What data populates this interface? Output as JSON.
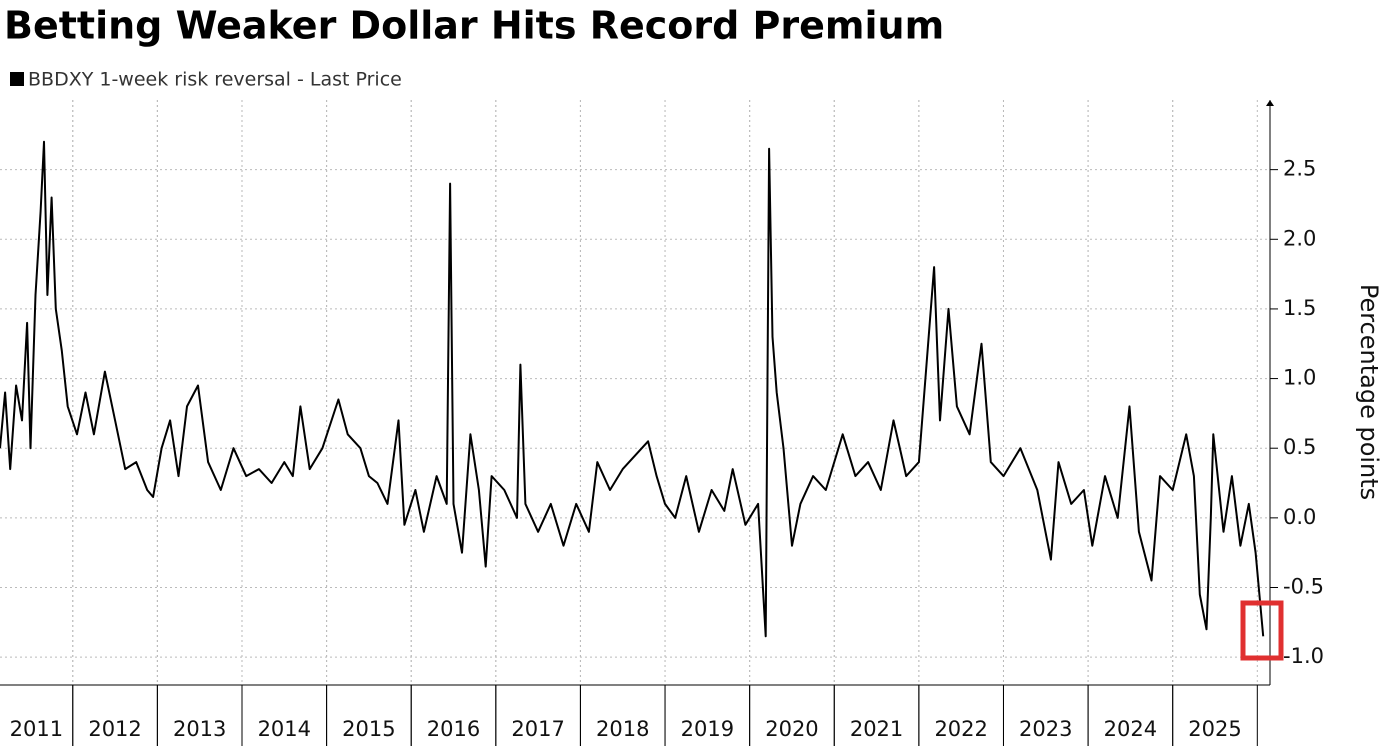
{
  "chart_data": {
    "type": "line",
    "title": "Betting Weaker Dollar Hits Record Premium",
    "y_axis_label": "Percentage points",
    "series": [
      {
        "name": "BBDXY 1-week risk reversal - Last Price",
        "color": "#000000",
        "x": [
          2011.14,
          2011.2,
          2011.26,
          2011.33,
          2011.4,
          2011.46,
          2011.5,
          2011.56,
          2011.62,
          2011.66,
          2011.7,
          2011.75,
          2011.8,
          2011.87,
          2011.94,
          2012.05,
          2012.15,
          2012.25,
          2012.38,
          2012.5,
          2012.62,
          2012.75,
          2012.88,
          2012.95,
          2013.05,
          2013.15,
          2013.25,
          2013.35,
          2013.48,
          2013.6,
          2013.75,
          2013.9,
          2014.05,
          2014.2,
          2014.35,
          2014.5,
          2014.6,
          2014.69,
          2014.8,
          2014.95,
          2015.14,
          2015.25,
          2015.4,
          2015.5,
          2015.6,
          2015.72,
          2015.85,
          2015.92,
          2016.05,
          2016.15,
          2016.3,
          2016.42,
          2016.46,
          2016.5,
          2016.6,
          2016.7,
          2016.8,
          2016.88,
          2016.95,
          2017.1,
          2017.25,
          2017.29,
          2017.35,
          2017.5,
          2017.65,
          2017.8,
          2017.95,
          2018.1,
          2018.2,
          2018.35,
          2018.5,
          2018.65,
          2018.8,
          2018.9,
          2019.0,
          2019.12,
          2019.25,
          2019.4,
          2019.55,
          2019.7,
          2019.8,
          2019.95,
          2020.1,
          2020.19,
          2020.23,
          2020.27,
          2020.32,
          2020.4,
          2020.5,
          2020.6,
          2020.75,
          2020.9,
          2021.1,
          2021.25,
          2021.4,
          2021.55,
          2021.7,
          2021.85,
          2022.0,
          2022.18,
          2022.25,
          2022.35,
          2022.45,
          2022.6,
          2022.74,
          2022.85,
          2023.0,
          2023.2,
          2023.4,
          2023.56,
          2023.65,
          2023.8,
          2023.95,
          2024.05,
          2024.2,
          2024.35,
          2024.49,
          2024.6,
          2024.75,
          2024.85,
          2025.0,
          2025.16,
          2025.25,
          2025.32,
          2025.4,
          2025.45,
          2025.48,
          2025.6,
          2025.7,
          2025.8,
          2025.9,
          2025.98,
          2026.07
        ],
        "values": [
          0.5,
          0.9,
          0.35,
          0.95,
          0.7,
          1.4,
          0.5,
          1.6,
          2.2,
          2.7,
          1.6,
          2.3,
          1.5,
          1.2,
          0.8,
          0.6,
          0.9,
          0.6,
          1.05,
          0.7,
          0.35,
          0.4,
          0.2,
          0.15,
          0.5,
          0.7,
          0.3,
          0.8,
          0.95,
          0.4,
          0.2,
          0.5,
          0.3,
          0.35,
          0.25,
          0.4,
          0.3,
          0.8,
          0.35,
          0.5,
          0.85,
          0.6,
          0.5,
          0.3,
          0.25,
          0.1,
          0.7,
          -0.05,
          0.2,
          -0.1,
          0.3,
          0.1,
          2.4,
          0.1,
          -0.25,
          0.6,
          0.2,
          -0.35,
          0.3,
          0.2,
          0.0,
          1.1,
          0.1,
          -0.1,
          0.1,
          -0.2,
          0.1,
          -0.1,
          0.4,
          0.2,
          0.35,
          0.45,
          0.55,
          0.3,
          0.1,
          0.0,
          0.3,
          -0.1,
          0.2,
          0.05,
          0.35,
          -0.05,
          0.1,
          -0.85,
          2.65,
          1.3,
          0.9,
          0.5,
          -0.2,
          0.1,
          0.3,
          0.2,
          0.6,
          0.3,
          0.4,
          0.2,
          0.7,
          0.3,
          0.4,
          1.8,
          0.7,
          1.5,
          0.8,
          0.6,
          1.25,
          0.4,
          0.3,
          0.5,
          0.2,
          -0.3,
          0.4,
          0.1,
          0.2,
          -0.2,
          0.3,
          0.0,
          0.8,
          -0.1,
          -0.45,
          0.3,
          0.2,
          0.6,
          0.3,
          -0.55,
          -0.8,
          0.0,
          0.6,
          -0.1,
          0.3,
          -0.2,
          0.1,
          -0.25,
          -0.85
        ]
      }
    ],
    "xlim": [
      2011.14,
      2026.15
    ],
    "xticks": [
      2011,
      2012,
      2013,
      2014,
      2015,
      2016,
      2017,
      2018,
      2019,
      2020,
      2021,
      2022,
      2023,
      2024,
      2025
    ],
    "ylim": [
      -1.2,
      3.0
    ],
    "yticks": [
      {
        "value": -1.0,
        "label": "-1.0"
      },
      {
        "value": -0.5,
        "label": "-0.5"
      },
      {
        "value": 0.0,
        "label": "0.0"
      },
      {
        "value": 0.5,
        "label": "0.5"
      },
      {
        "value": 1.0,
        "label": "1.0"
      },
      {
        "value": 1.5,
        "label": "1.5"
      },
      {
        "value": 2.0,
        "label": "2.0"
      },
      {
        "value": 2.5,
        "label": "2.5"
      }
    ],
    "grid": true
  }
}
